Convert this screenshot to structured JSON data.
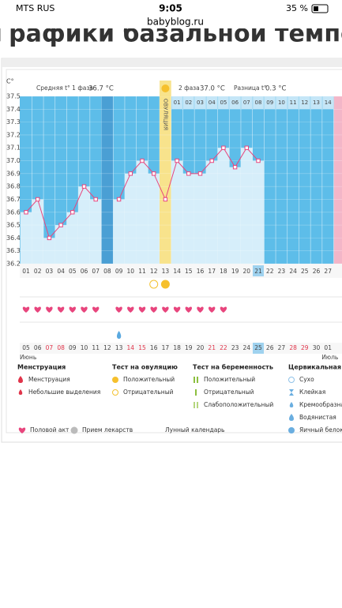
{
  "status_bar": {
    "carrier": "MTS RUS",
    "time": "9:05",
    "battery": "35 %",
    "url": "babyblog.ru"
  },
  "page_title": "Графики базальной температуры",
  "chart_data": {
    "type": "line",
    "y_axis_label": "C°",
    "header": {
      "phase1_label": "Средняя t° 1 фаза",
      "phase1_value": "36.7 °C",
      "phase2_label": "2 фаза",
      "phase2_value": "37.0 °C",
      "diff_label": "Разница t°",
      "diff_value": "0.3 °C"
    },
    "ovulation_label": "ОВУЛЯЦИЯ",
    "categories": [
      "01",
      "02",
      "03",
      "04",
      "05",
      "06",
      "07",
      "08",
      "09",
      "10",
      "11",
      "12",
      "13",
      "14",
      "15",
      "16",
      "17",
      "18",
      "19",
      "20",
      "21",
      "22",
      "23",
      "24",
      "25",
      "26",
      "27"
    ],
    "series": [
      {
        "color": "#e8457d",
        "values": [
          36.6,
          36.7,
          36.4,
          36.5,
          36.6,
          36.8,
          36.7,
          null,
          36.7,
          36.9,
          37.0,
          36.9,
          36.7,
          37.0,
          36.9,
          36.9,
          37.0,
          37.1,
          36.95,
          37.1,
          37.0,
          null,
          null,
          null,
          null,
          null,
          null
        ]
      }
    ],
    "ylim": [
      36.2,
      37.5
    ],
    "yticks": [
      36.2,
      36.3,
      36.4,
      36.5,
      36.6,
      36.7,
      36.8,
      36.9,
      {
        "value": 37,
        "label": "37.0"
      },
      37.1,
      37.2,
      37.3,
      37.4,
      37.5
    ],
    "grid": true,
    "phase2_days": [
      "01",
      "02",
      "03",
      "04",
      "05",
      "06",
      "07",
      "08",
      "09",
      "10",
      "11",
      "12",
      "13",
      "14"
    ],
    "phase2_start": 14,
    "ovulation_day": 13,
    "selected_day": 21,
    "dates": [
      "05",
      "06",
      "07",
      "08",
      "09",
      "10",
      "11",
      "12",
      "13",
      "14",
      "15",
      "16",
      "17",
      "18",
      "19",
      "20",
      "21",
      "22",
      "23",
      "24",
      "25",
      "26",
      "27",
      "28",
      "29",
      "30",
      "01"
    ],
    "weekend_dates": [
      2,
      3,
      9,
      10,
      16,
      17,
      23,
      24
    ],
    "months": [
      {
        "label": "Июнь",
        "day": 1
      },
      {
        "label": "Июль",
        "day": 27
      }
    ],
    "intercourse_days": [
      1,
      2,
      3,
      4,
      5,
      6,
      7,
      9,
      10,
      11,
      12,
      13,
      14,
      15,
      16,
      17,
      18
    ],
    "ovulation_test": {
      "negative": [
        12
      ],
      "positive": [
        13
      ]
    },
    "cervical_watery": [
      9
    ]
  },
  "legend": {
    "sections": [
      {
        "title": "Менструация",
        "items": [
          "Менструация",
          "Небольшие выделения"
        ]
      },
      {
        "title": "Тест на овуляцию",
        "items": [
          "Положительный",
          "Отрицательный"
        ]
      },
      {
        "title": "Тест на беременность",
        "items": [
          "Положительный",
          "Отрицательный",
          "Слабоположительный"
        ]
      },
      {
        "title": "Цервикальная жидкость",
        "items": [
          "Сухо",
          "Клейкая",
          "Кремообразная",
          "Водянистая",
          "Яичный белок"
        ]
      }
    ],
    "bottom": [
      "Половой акт",
      "Прием лекарств",
      "Лунный календарь"
    ]
  }
}
